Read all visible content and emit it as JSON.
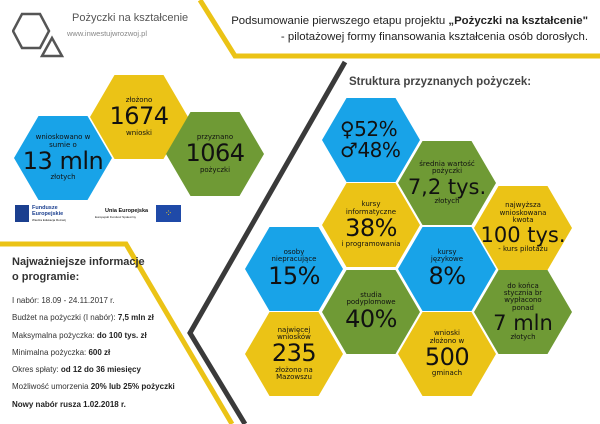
{
  "brand": {
    "name": "Pożyczki na kształcenie",
    "url": "www.inwestujwrozwoj.pl"
  },
  "header": {
    "line1_prefix": "Podsumowanie pierwszego etapu projektu ",
    "line1_bold": "„Pożyczki na kształcenie\"",
    "line2": "- pilotażowej formy finansowania kształcenia osób dorosłych."
  },
  "summary": [
    {
      "top": "wnioskowano w sumie o",
      "value": "13 mln",
      "bottom": "złotych",
      "color": "#18a3e8"
    },
    {
      "top": "złożono",
      "value": "1674",
      "bottom": "wnioski",
      "color": "#ebc316"
    },
    {
      "top": "przyznano",
      "value": "1064",
      "bottom": "pożyczki",
      "color": "#6f9a35"
    }
  ],
  "logos": {
    "fe_title": "Fundusze Europejskie",
    "fe_sub": "Wiedza Edukacja Rozwój",
    "ue_title": "Unia Europejska",
    "ue_sub": "Europejski Fundusz Społeczny"
  },
  "info": {
    "title": "Najważniejsze informacje o programie:",
    "items": [
      {
        "label": "I nabór: 18.09 - 24.11.2017 r.",
        "value": ""
      },
      {
        "label": "Budżet na pożyczki (I nabór): ",
        "value": "7,5 mln zł"
      },
      {
        "label": "Maksymalna pożyczka: ",
        "value": "do 100 tys. zł"
      },
      {
        "label": "Minimalna pożyczka: ",
        "value": "600 zł"
      },
      {
        "label": "Okres spłaty: ",
        "value": "od 12 do 36 miesięcy"
      },
      {
        "label": "Możliwość umorzenia ",
        "value": "20% lub 25% pożyczki"
      }
    ],
    "footer": "Nowy nabór rusza 1.02.2018 r."
  },
  "structure": {
    "title": "Struktura przyznanych pożyczek:",
    "gender": {
      "female_symbol": "♀",
      "female": "52%",
      "male_symbol": "♂",
      "male": "48%"
    },
    "avg": {
      "top": "średnia wartość pożyczki",
      "value": "7,2 tys.",
      "bottom": "złotych"
    },
    "it": {
      "top": "kursy informatyczne",
      "value": "38%",
      "bottom": "i programowania"
    },
    "max": {
      "top": "najwyższa wnioskowana kwota",
      "value": "100 tys.",
      "bottom": "- kurs pilotażu"
    },
    "unemployed": {
      "top": "osoby niepracujące",
      "value": "15%"
    },
    "lang": {
      "top": "kursy językowe",
      "value": "8%"
    },
    "postgrad": {
      "top": "studia podyplomowe",
      "value": "40%"
    },
    "paid": {
      "top": "do końca stycznia br wypłacono ponad",
      "value": "7 mln",
      "bottom": "złotych"
    },
    "region": {
      "top": "najwięcej wniosków",
      "value": "235",
      "bottom": "złożono na Mazowszu"
    },
    "gminas": {
      "top": "wnioski złożono w",
      "value": "500",
      "bottom": "gminach"
    }
  }
}
